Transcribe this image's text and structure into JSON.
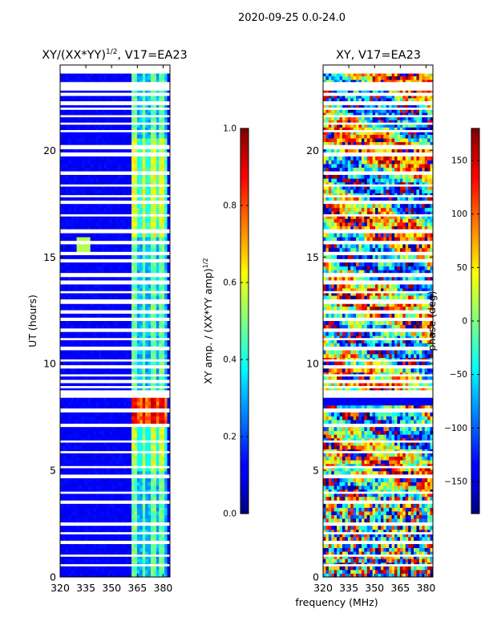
{
  "suptitle": "2020-09-25 0.0-24.0",
  "chart_data": [
    {
      "type": "heatmap",
      "title": "XY/(XX*YY)",
      "title_sup": "1/2",
      "title_suffix": ", V17=EA23",
      "ylabel": "UT (hours)",
      "xlabel": "",
      "xlim": [
        320,
        384
      ],
      "ylim": [
        0,
        24
      ],
      "xticks": [
        "320",
        "335",
        "350",
        "365",
        "380"
      ],
      "yticks": [
        "0",
        "5",
        "10",
        "15",
        "20"
      ],
      "colorbar": {
        "label": "XY amp. / (XX*YY amp)",
        "label_sup": "1/2",
        "range": [
          0.0,
          1.0
        ],
        "ticks": [
          "0.0",
          "0.2",
          "0.4",
          "0.6",
          "0.8",
          "1.0"
        ]
      }
    },
    {
      "type": "heatmap",
      "title": "XY, V17=EA23",
      "ylabel": "",
      "xlabel": "frequency (MHz)",
      "xlim": [
        320,
        384
      ],
      "ylim": [
        0,
        24
      ],
      "xticks": [
        "320",
        "335",
        "350",
        "365",
        "380"
      ],
      "yticks": [
        "0",
        "5",
        "10",
        "15",
        "20"
      ],
      "colorbar": {
        "label": "phase (deg)",
        "range": [
          -180,
          180
        ],
        "ticks": [
          "−150",
          "−100",
          "−50",
          "0",
          "50",
          "100",
          "150"
        ]
      }
    }
  ]
}
